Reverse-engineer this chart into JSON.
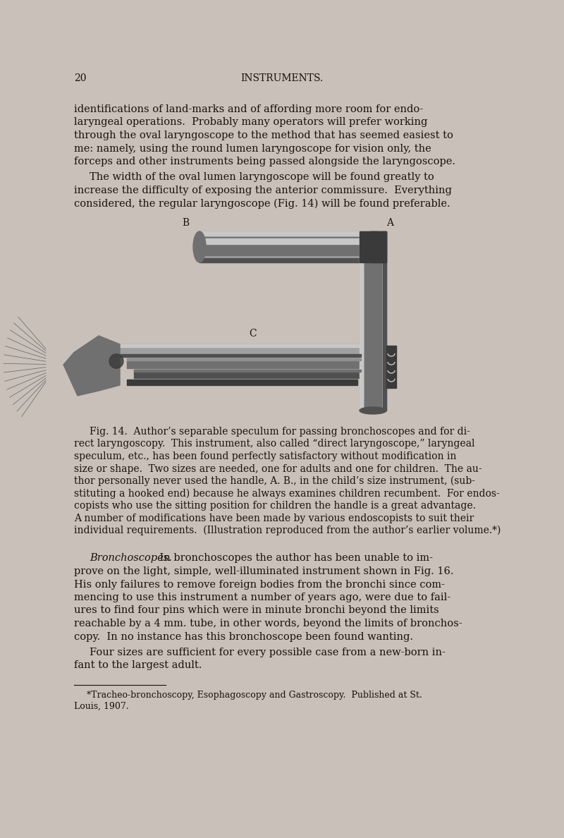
{
  "background_color": "#c9c0b9",
  "text_color": "#1a1208",
  "page_number": "20",
  "header": "INSTRUMENTS.",
  "body_text_1_lines": [
    "identifications of land-marks and of affording more room for endo-",
    "laryngeal operations.  Probably many operators will prefer working",
    "through the oval laryngoscope to the method that has seemed easiest to",
    "me: namely, using the round lumen laryngoscope for vision only, the",
    "forceps and other instruments being passed alongside the laryngoscope."
  ],
  "body_text_2_lines": [
    " The width of the oval lumen laryngoscope will be found greatly to",
    "increase the difficulty of exposing the anterior commissure.  Everything",
    "considered, the regular laryngoscope (Fig. 14) will be found preferable."
  ],
  "fig_caption_lines": [
    " Fig. 14.  Author’s separable speculum for passing bronchoscopes and for di-",
    "rect laryngoscopy.  This instrument, also called “direct laryngoscope,” laryngeal",
    "speculum, etc., has been found perfectly satisfactory without modification in",
    "size or shape.  Two sizes are needed, one for adults and one for children.  The au-",
    "thor personally never used the handle, A. B., in the child’s size instrument, (sub-",
    "stituting a hooked end) because he always examines children recumbent.  For endos-",
    "copists who use the sitting position for children the handle is a great advantage.",
    "A number of modifications have been made by various endoscopists to suit their",
    "individual requirements.  (Illustration reproduced from the author’s earlier volume.*)"
  ],
  "body_text_3_lines": [
    "  Bronchoscopes.   In bronchoscopes the author has been unable to im-",
    "prove on the light, simple, well-illuminated instrument shown in Fig. 16.",
    "His only failures to remove foreign bodies from the bronchi since com-",
    "mencing to use this instrument a number of years ago, were due to fail-",
    "ures to find four pins which were in minute bronchi beyond the limits",
    "reachable by a 4 mm. tube, in other words, beyond the limits of bronchos-",
    "copy.  In no instance has this bronchoscope been found wanting."
  ],
  "body_text_4_lines": [
    " Four sizes are sufficient for every possible case from a new-born in-",
    "fant to the largest adult."
  ],
  "footnote_lines": [
    "*Tracheo-bronchoscopy, Esophagoscopy and Gastroscopy.  Published at St.",
    "Louis, 1907."
  ],
  "light_gray": "#a0a0a0",
  "mid_gray": "#707070",
  "dark_gray": "#3a3a3a",
  "highlight": "#c8c8c8",
  "shadow": "#505050"
}
